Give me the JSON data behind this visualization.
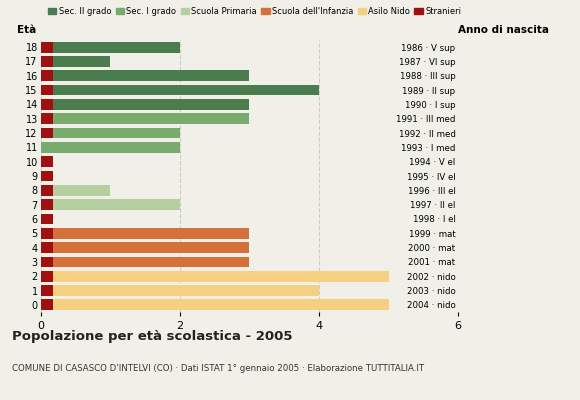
{
  "title": "Popolazione per età scolastica - 2005",
  "subtitle": "COMUNE DI CASASCO D'INTELVI (CO) · Dati ISTAT 1° gennaio 2005 · Elaborazione TUTTITALIA.IT",
  "ylabel_left": "Età",
  "ylabel_right": "Anno di nascita",
  "xlim": [
    0,
    6
  ],
  "xticks": [
    0,
    2,
    4,
    6
  ],
  "ages": [
    18,
    17,
    16,
    15,
    14,
    13,
    12,
    11,
    10,
    9,
    8,
    7,
    6,
    5,
    4,
    3,
    2,
    1,
    0
  ],
  "years": [
    "1986 · V sup",
    "1987 · VI sup",
    "1988 · III sup",
    "1989 · II sup",
    "1990 · I sup",
    "1991 · III med",
    "1992 · II med",
    "1993 · I med",
    "1994 · V el",
    "1995 · IV el",
    "1996 · III el",
    "1997 · II el",
    "1998 · I el",
    "1999 · mat",
    "2000 · mat",
    "2001 · mat",
    "2002 · nido",
    "2003 · nido",
    "2004 · nido"
  ],
  "values": [
    2,
    1,
    3,
    4,
    3,
    3,
    2,
    2,
    0,
    0,
    1,
    2,
    0,
    3,
    3,
    3,
    5,
    4,
    5
  ],
  "stranieri": [
    1,
    1,
    1,
    1,
    1,
    1,
    1,
    0,
    1,
    1,
    1,
    1,
    1,
    1,
    1,
    1,
    1,
    1,
    1
  ],
  "categories": [
    "Sec. II grado",
    "Sec. II grado",
    "Sec. II grado",
    "Sec. II grado",
    "Sec. II grado",
    "Sec. I grado",
    "Sec. I grado",
    "Sec. I grado",
    "Scuola Primaria",
    "Scuola Primaria",
    "Scuola Primaria",
    "Scuola Primaria",
    "Scuola Primaria",
    "Scuola dell'Infanzia",
    "Scuola dell'Infanzia",
    "Scuola dell'Infanzia",
    "Asilo Nido",
    "Asilo Nido",
    "Asilo Nido"
  ],
  "colors": {
    "Sec. II grado": "#4a7c4e",
    "Sec. I grado": "#7aab6e",
    "Scuola Primaria": "#b5cfa0",
    "Scuola dell'Infanzia": "#d4703a",
    "Asilo Nido": "#f5d080",
    "Stranieri": "#a01010"
  },
  "legend_order": [
    "Sec. II grado",
    "Sec. I grado",
    "Scuola Primaria",
    "Scuola dell'Infanzia",
    "Asilo Nido",
    "Stranieri"
  ],
  "bg_color": "#f0f0e8",
  "grid_color": "#cccccc"
}
